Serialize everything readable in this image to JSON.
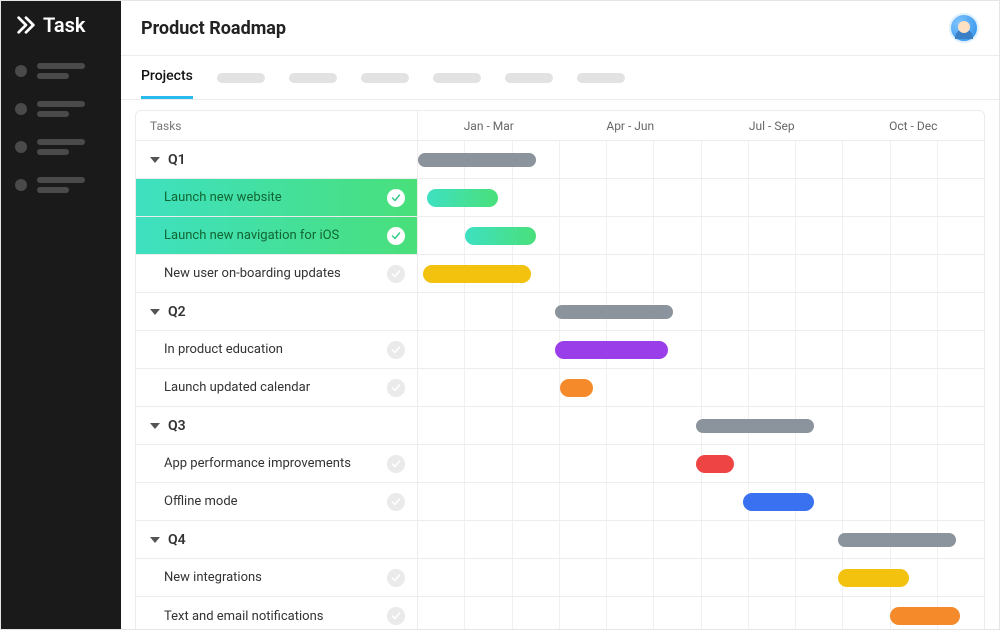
{
  "app": {
    "logo_text": "Task"
  },
  "header": {
    "title": "Product Roadmap"
  },
  "tabs": {
    "active": "Projects"
  },
  "columns": {
    "tasks_header": "Tasks",
    "quarters": [
      "Jan - Mar",
      "Apr - Jun",
      "Jul - Sep",
      "Oct - Dec"
    ]
  },
  "timeline": {
    "months": 12,
    "task_col_pct": 0
  },
  "colors": {
    "summary_bar": "#8b939c",
    "completed_gradient_start": "#3ee0c1",
    "completed_gradient_end": "#49e07a",
    "yellow": "#f2c20f",
    "purple": "#9a3eea",
    "orange": "#f58a2a",
    "red": "#ee4444",
    "blue": "#3a71f0"
  },
  "groups": [
    {
      "label": "Q1",
      "summary": {
        "start": 0,
        "span": 2.5
      },
      "tasks": [
        {
          "label": "Launch new website",
          "status": "done",
          "bar": {
            "start": 0.2,
            "span": 1.5,
            "color_from": "#3ee0c1",
            "color_to": "#49e07a"
          }
        },
        {
          "label": "Launch new navigation for iOS",
          "status": "done",
          "bar": {
            "start": 1.0,
            "span": 1.5,
            "color_from": "#3ee0c1",
            "color_to": "#49e07a"
          }
        },
        {
          "label": "New user on-boarding updates",
          "status": "pending",
          "bar": {
            "start": 0.1,
            "span": 2.3,
            "fill": "#f2c20f"
          }
        }
      ]
    },
    {
      "label": "Q2",
      "summary": {
        "start": 2.9,
        "span": 2.5
      },
      "tasks": [
        {
          "label": "In product education",
          "status": "pending",
          "bar": {
            "start": 2.9,
            "span": 2.4,
            "fill": "#9a3eea"
          }
        },
        {
          "label": "Launch updated calendar",
          "status": "pending",
          "bar": {
            "start": 3.0,
            "span": 0.7,
            "fill": "#f58a2a"
          }
        }
      ]
    },
    {
      "label": "Q3",
      "summary": {
        "start": 5.9,
        "span": 2.5
      },
      "tasks": [
        {
          "label": "App performance improvements",
          "status": "pending",
          "bar": {
            "start": 5.9,
            "span": 0.8,
            "fill": "#ee4444"
          }
        },
        {
          "label": "Offline mode",
          "status": "pending",
          "bar": {
            "start": 6.9,
            "span": 1.5,
            "fill": "#3a71f0"
          }
        }
      ]
    },
    {
      "label": "Q4",
      "summary": {
        "start": 8.9,
        "span": 2.5
      },
      "tasks": [
        {
          "label": "New integrations",
          "status": "pending",
          "bar": {
            "start": 8.9,
            "span": 1.5,
            "fill": "#f2c20f"
          }
        },
        {
          "label": "Text  and email notifications",
          "status": "pending",
          "bar": {
            "start": 10.0,
            "span": 1.5,
            "fill": "#f58a2a"
          }
        }
      ]
    }
  ]
}
